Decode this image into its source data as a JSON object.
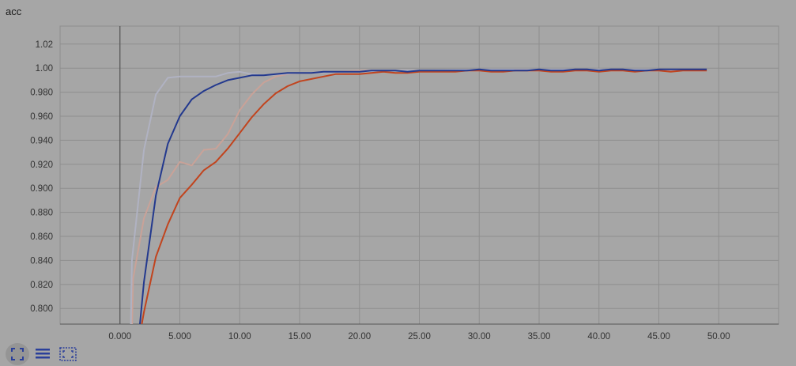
{
  "card": {
    "title": "acc"
  },
  "toolbar": {
    "buttons": [
      {
        "name": "fullscreen-icon",
        "active": true
      },
      {
        "name": "data-table-icon",
        "active": false
      },
      {
        "name": "fit-domain-icon",
        "active": false
      }
    ]
  },
  "colors": {
    "background": "#a6a6a6",
    "grid": "#8e8e8e",
    "axis": "#555555"
  },
  "chart_data": {
    "type": "line",
    "title": "acc",
    "xlabel": "",
    "ylabel": "",
    "xlim": [
      -5,
      55
    ],
    "ylim": [
      0.787,
      1.035
    ],
    "grid": true,
    "xticks": [
      "0.000",
      "5.000",
      "10.00",
      "15.00",
      "20.00",
      "25.00",
      "30.00",
      "35.00",
      "40.00",
      "45.00",
      "50.00"
    ],
    "xtick_values": [
      0,
      5,
      10,
      15,
      20,
      25,
      30,
      35,
      40,
      45,
      50
    ],
    "yticks": [
      "0.800",
      "0.820",
      "0.840",
      "0.860",
      "0.880",
      "0.900",
      "0.920",
      "0.940",
      "0.960",
      "0.980",
      "1.00",
      "1.02"
    ],
    "ytick_values": [
      0.8,
      0.82,
      0.84,
      0.86,
      0.88,
      0.9,
      0.92,
      0.94,
      0.96,
      0.98,
      1.0,
      1.02
    ],
    "series": [
      {
        "color": "#c9a298",
        "values": [
          [
            1,
            0.78
          ],
          [
            1.1,
            0.825
          ],
          [
            2,
            0.875
          ],
          [
            3,
            0.901
          ],
          [
            4,
            0.907
          ],
          [
            5,
            0.922
          ],
          [
            6,
            0.919
          ],
          [
            7,
            0.932
          ],
          [
            8,
            0.933
          ],
          [
            9,
            0.945
          ],
          [
            10,
            0.965
          ],
          [
            11,
            0.978
          ],
          [
            12,
            0.988
          ],
          [
            13,
            0.993
          ],
          [
            14,
            0.995
          ],
          [
            15,
            0.996
          ],
          [
            16,
            0.996
          ],
          [
            17,
            0.997
          ],
          [
            18,
            0.997
          ],
          [
            20,
            0.998
          ],
          [
            22,
            0.998
          ],
          [
            25,
            0.998
          ],
          [
            30,
            0.998
          ],
          [
            35,
            0.998
          ],
          [
            40,
            0.998
          ],
          [
            45,
            0.998
          ],
          [
            49,
            0.998
          ]
        ]
      },
      {
        "color": "#b0b2c2",
        "values": [
          [
            0.9,
            0.78
          ],
          [
            1,
            0.84
          ],
          [
            2,
            0.932
          ],
          [
            3,
            0.978
          ],
          [
            4,
            0.992
          ],
          [
            5,
            0.993
          ],
          [
            6,
            0.993
          ],
          [
            7,
            0.993
          ],
          [
            8,
            0.993
          ],
          [
            9,
            0.996
          ],
          [
            10,
            0.997
          ],
          [
            11,
            0.995
          ],
          [
            12,
            0.994
          ],
          [
            15,
            0.996
          ],
          [
            20,
            0.997
          ],
          [
            22,
            0.998
          ],
          [
            25,
            0.998
          ],
          [
            30,
            0.999
          ],
          [
            35,
            0.999
          ],
          [
            40,
            0.999
          ],
          [
            45,
            0.999
          ],
          [
            49,
            0.999
          ]
        ]
      },
      {
        "color": "#c1441e",
        "values": [
          [
            1.7,
            0.78
          ],
          [
            2,
            0.797
          ],
          [
            3,
            0.843
          ],
          [
            4,
            0.87
          ],
          [
            5,
            0.892
          ],
          [
            6,
            0.903
          ],
          [
            7,
            0.915
          ],
          [
            8,
            0.922
          ],
          [
            9,
            0.933
          ],
          [
            10,
            0.946
          ],
          [
            11,
            0.959
          ],
          [
            12,
            0.97
          ],
          [
            13,
            0.979
          ],
          [
            14,
            0.985
          ],
          [
            15,
            0.989
          ],
          [
            16,
            0.991
          ],
          [
            17,
            0.993
          ],
          [
            18,
            0.995
          ],
          [
            19,
            0.995
          ],
          [
            20,
            0.995
          ],
          [
            21,
            0.996
          ],
          [
            22,
            0.997
          ],
          [
            23,
            0.996
          ],
          [
            24,
            0.996
          ],
          [
            25,
            0.997
          ],
          [
            26,
            0.997
          ],
          [
            27,
            0.997
          ],
          [
            28,
            0.997
          ],
          [
            29,
            0.998
          ],
          [
            30,
            0.998
          ],
          [
            31,
            0.997
          ],
          [
            32,
            0.997
          ],
          [
            33,
            0.998
          ],
          [
            34,
            0.998
          ],
          [
            35,
            0.998
          ],
          [
            36,
            0.997
          ],
          [
            37,
            0.997
          ],
          [
            38,
            0.998
          ],
          [
            39,
            0.998
          ],
          [
            40,
            0.997
          ],
          [
            41,
            0.998
          ],
          [
            42,
            0.998
          ],
          [
            43,
            0.997
          ],
          [
            44,
            0.998
          ],
          [
            45,
            0.998
          ],
          [
            46,
            0.997
          ],
          [
            47,
            0.998
          ],
          [
            48,
            0.998
          ],
          [
            49,
            0.998
          ]
        ]
      },
      {
        "color": "#23398e",
        "values": [
          [
            1.6,
            0.78
          ],
          [
            2,
            0.822
          ],
          [
            3,
            0.894
          ],
          [
            4,
            0.937
          ],
          [
            5,
            0.96
          ],
          [
            6,
            0.974
          ],
          [
            7,
            0.981
          ],
          [
            8,
            0.986
          ],
          [
            9,
            0.99
          ],
          [
            10,
            0.992
          ],
          [
            11,
            0.994
          ],
          [
            12,
            0.994
          ],
          [
            13,
            0.995
          ],
          [
            14,
            0.996
          ],
          [
            15,
            0.996
          ],
          [
            16,
            0.996
          ],
          [
            17,
            0.997
          ],
          [
            18,
            0.997
          ],
          [
            19,
            0.997
          ],
          [
            20,
            0.997
          ],
          [
            21,
            0.998
          ],
          [
            22,
            0.998
          ],
          [
            23,
            0.998
          ],
          [
            24,
            0.997
          ],
          [
            25,
            0.998
          ],
          [
            26,
            0.998
          ],
          [
            27,
            0.998
          ],
          [
            28,
            0.998
          ],
          [
            29,
            0.998
          ],
          [
            30,
            0.999
          ],
          [
            31,
            0.998
          ],
          [
            32,
            0.998
          ],
          [
            33,
            0.998
          ],
          [
            34,
            0.998
          ],
          [
            35,
            0.999
          ],
          [
            36,
            0.998
          ],
          [
            37,
            0.998
          ],
          [
            38,
            0.999
          ],
          [
            39,
            0.999
          ],
          [
            40,
            0.998
          ],
          [
            41,
            0.999
          ],
          [
            42,
            0.999
          ],
          [
            43,
            0.998
          ],
          [
            44,
            0.998
          ],
          [
            45,
            0.999
          ],
          [
            46,
            0.999
          ],
          [
            47,
            0.999
          ],
          [
            48,
            0.999
          ],
          [
            49,
            0.999
          ]
        ]
      }
    ]
  }
}
